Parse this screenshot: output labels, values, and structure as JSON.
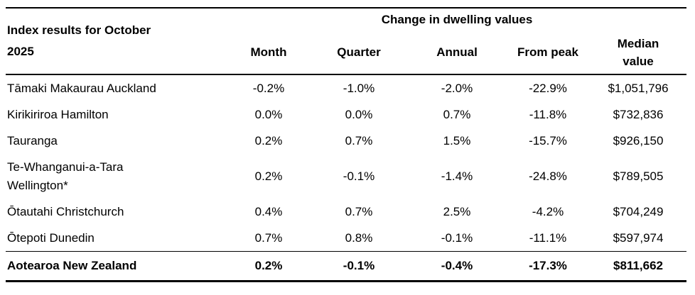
{
  "table": {
    "title": "Index results for October\n2025",
    "group_header": "Change in dwelling values",
    "columns": {
      "month": "Month",
      "quarter": "Quarter",
      "annual": "Annual",
      "from_peak": "From peak",
      "median_value": "Median\nvalue"
    },
    "rows": [
      {
        "region": "Tāmaki Makaurau Auckland",
        "month": "-0.2%",
        "quarter": "-1.0%",
        "annual": "-2.0%",
        "from_peak": "-22.9%",
        "median_value": "$1,051,796"
      },
      {
        "region": "Kirikiriroa Hamilton",
        "month": "0.0%",
        "quarter": "0.0%",
        "annual": "0.7%",
        "from_peak": "-11.8%",
        "median_value": "$732,836"
      },
      {
        "region": "Tauranga",
        "month": "0.2%",
        "quarter": "0.7%",
        "annual": "1.5%",
        "from_peak": "-15.7%",
        "median_value": "$926,150"
      },
      {
        "region": "Te-Whanganui-a-Tara\nWellington*",
        "month": "0.2%",
        "quarter": "-0.1%",
        "annual": "-1.4%",
        "from_peak": "-24.8%",
        "median_value": "$789,505"
      },
      {
        "region": "Ōtautahi Christchurch",
        "month": "0.4%",
        "quarter": "0.7%",
        "annual": "2.5%",
        "from_peak": "-4.2%",
        "median_value": "$704,249"
      },
      {
        "region": "Ōtepoti Dunedin",
        "month": "0.7%",
        "quarter": "0.8%",
        "annual": "-0.1%",
        "from_peak": "-11.1%",
        "median_value": "$597,974"
      }
    ],
    "total_row": {
      "region": "Aotearoa New Zealand",
      "month": "0.2%",
      "quarter": "-0.1%",
      "annual": "-0.4%",
      "from_peak": "-17.3%",
      "median_value": "$811,662"
    },
    "colors": {
      "text": "#000000",
      "background": "#ffffff",
      "border": "#000000"
    }
  }
}
